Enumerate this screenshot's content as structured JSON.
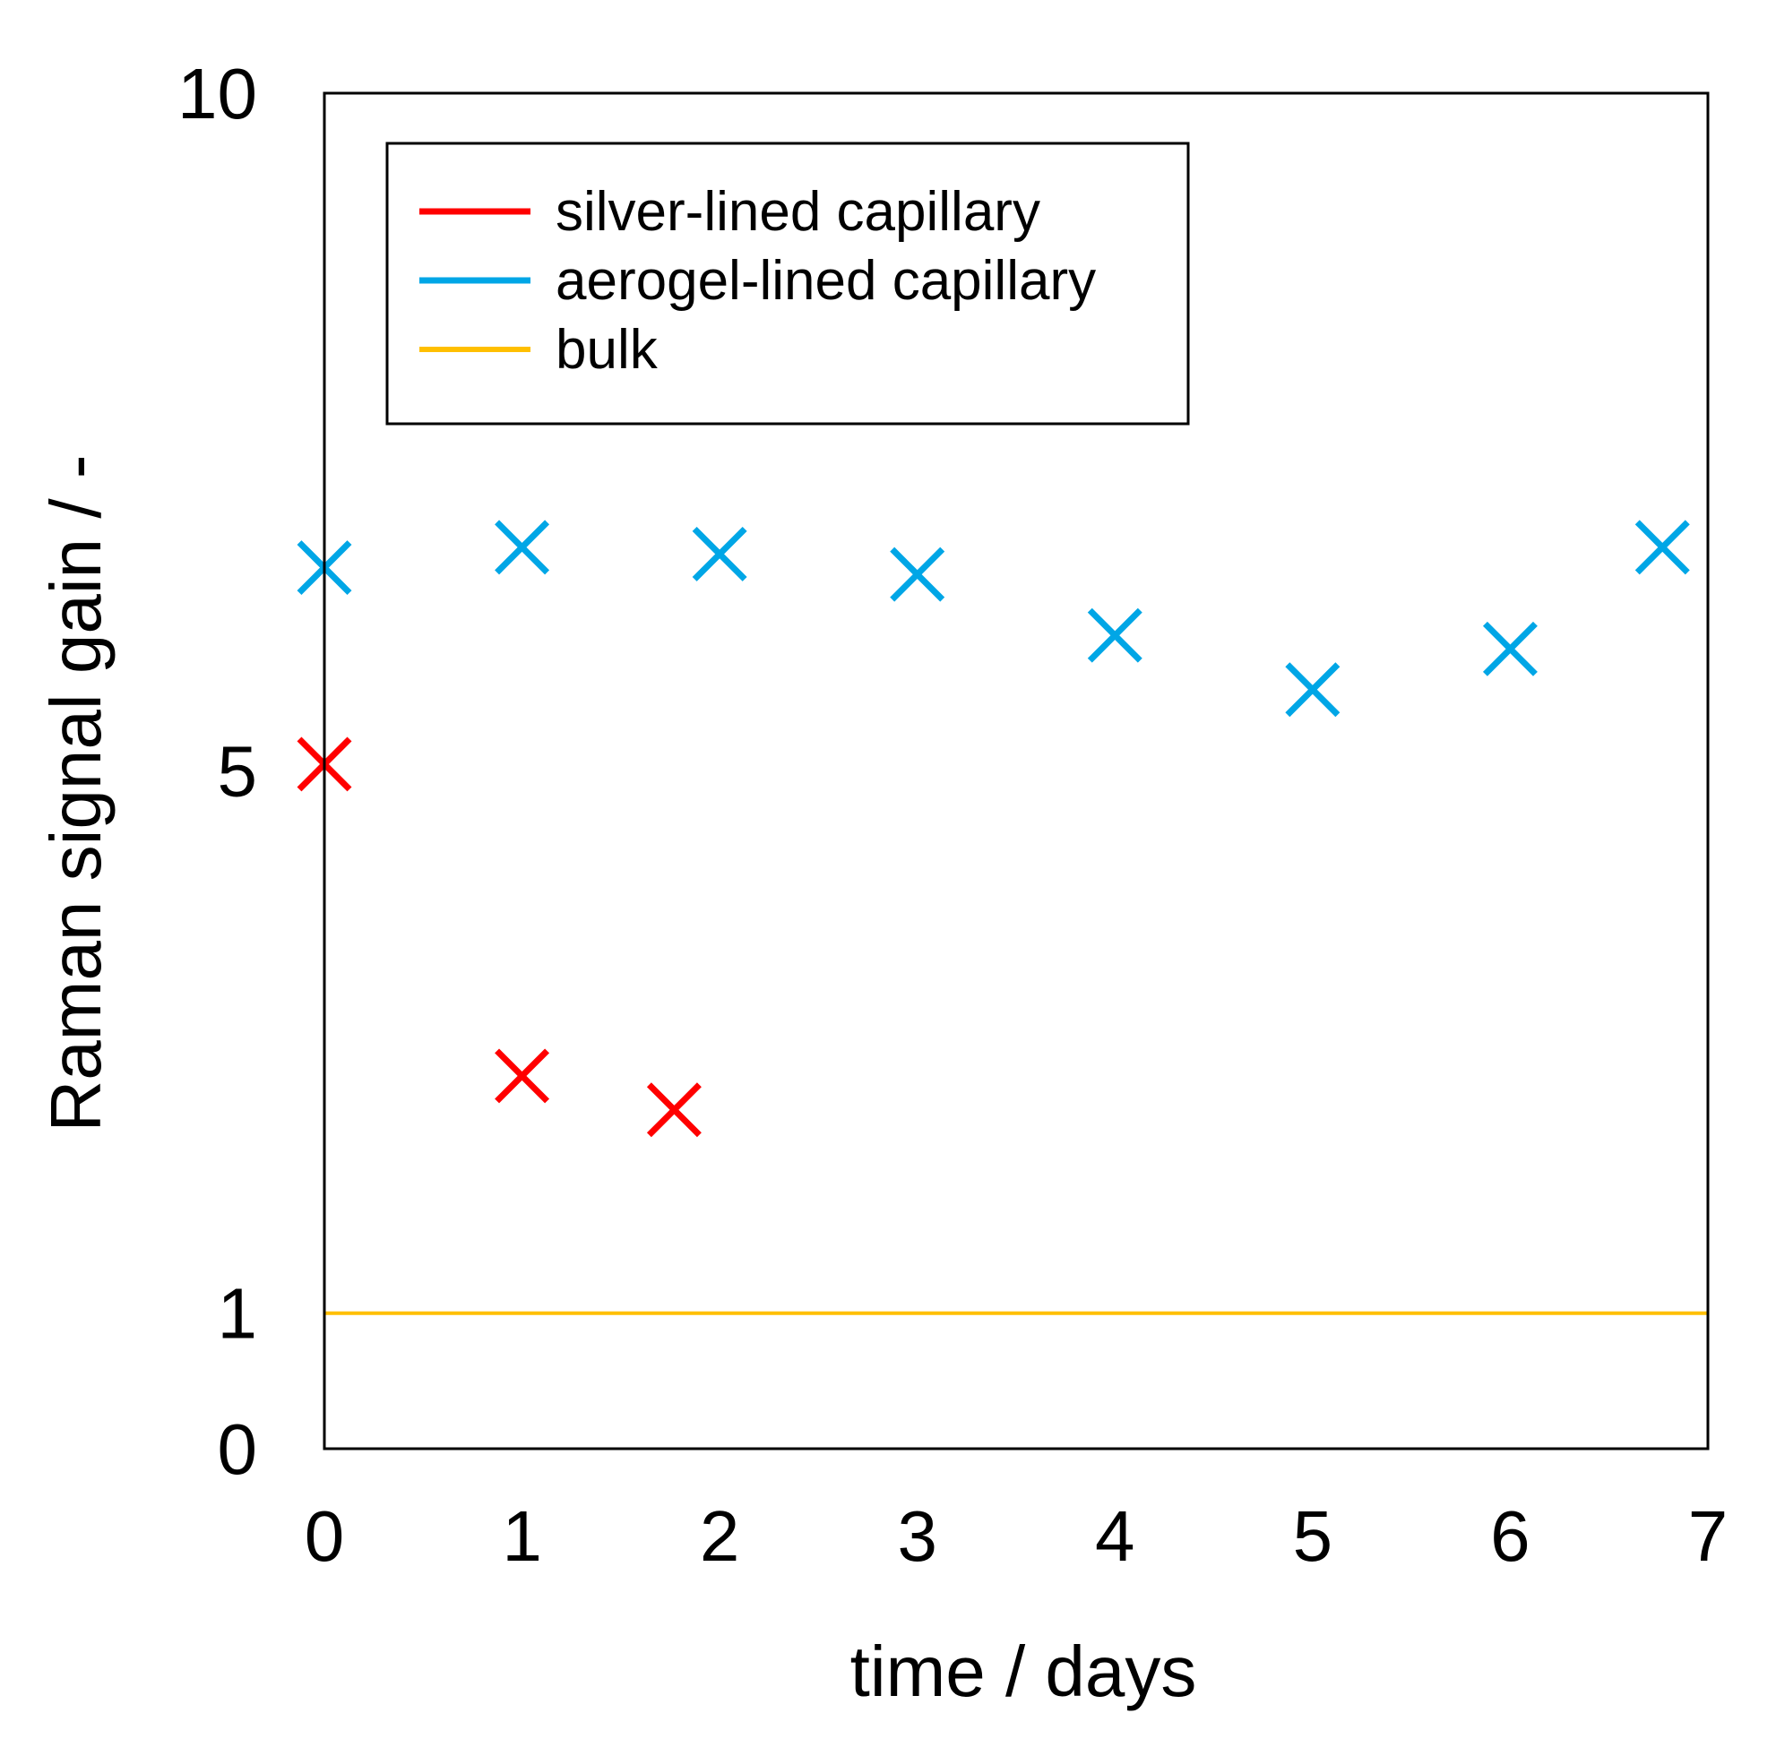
{
  "chart_data": {
    "type": "scatter",
    "xlabel": "time / days",
    "ylabel": "Raman signal gain / -",
    "xlim": [
      0,
      7
    ],
    "ylim": [
      0,
      10
    ],
    "xticks": [
      "0",
      "1",
      "2",
      "3",
      "4",
      "5",
      "6",
      "7"
    ],
    "yticks": [
      "0",
      "1",
      "5",
      "10"
    ],
    "grid": false,
    "legend_position": "top-left",
    "series": [
      {
        "name": "silver-lined capillary",
        "color": "#ff0000",
        "marker": "x",
        "x": [
          0,
          1,
          1.77
        ],
        "y": [
          5.05,
          2.75,
          2.5
        ]
      },
      {
        "name": "aerogel-lined capillary",
        "color": "#00a6e6",
        "marker": "x",
        "x": [
          0,
          1,
          2,
          3,
          4,
          5,
          6,
          6.77
        ],
        "y": [
          6.5,
          6.65,
          6.6,
          6.45,
          6.0,
          5.6,
          5.9,
          6.65
        ]
      },
      {
        "name": "bulk",
        "color": "#ffbf00",
        "marker": "line",
        "x": [
          0,
          7
        ],
        "y": [
          1,
          1
        ]
      }
    ]
  }
}
